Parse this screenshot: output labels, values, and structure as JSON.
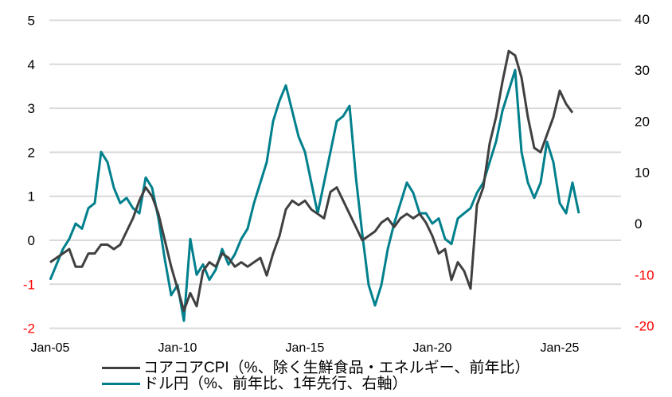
{
  "chart_data": {
    "type": "line",
    "title": "",
    "x_tick_labels": [
      "Jan-05",
      "Jan-10",
      "Jan-15",
      "Jan-20",
      "Jan-25"
    ],
    "left_axis": {
      "ticks": [
        5,
        4,
        3,
        2,
        1,
        0,
        -1,
        -2
      ],
      "ylim": [
        -2,
        5
      ],
      "label": ""
    },
    "right_axis": {
      "ticks": [
        40,
        30,
        20,
        10,
        0,
        -10,
        -20
      ],
      "ylim": [
        -20,
        40
      ],
      "label": ""
    },
    "grid": true,
    "legend_position": "bottom",
    "series": [
      {
        "name": "コアコアCPI（%、除く生鮮食品・エネルギー、前年比）",
        "axis": "left",
        "color": "#404040",
        "x": [
          2005.0,
          2005.25,
          2005.5,
          2005.75,
          2006.0,
          2006.25,
          2006.5,
          2006.75,
          2007.0,
          2007.25,
          2007.5,
          2007.75,
          2008.0,
          2008.25,
          2008.5,
          2008.75,
          2009.0,
          2009.25,
          2009.5,
          2009.75,
          2010.0,
          2010.25,
          2010.5,
          2010.75,
          2011.0,
          2011.25,
          2011.5,
          2011.75,
          2012.0,
          2012.25,
          2012.5,
          2012.75,
          2013.0,
          2013.25,
          2013.5,
          2013.75,
          2014.0,
          2014.25,
          2014.5,
          2014.75,
          2015.0,
          2015.25,
          2015.5,
          2015.75,
          2016.0,
          2016.25,
          2016.5,
          2016.75,
          2017.0,
          2017.25,
          2017.5,
          2017.75,
          2018.0,
          2018.25,
          2018.5,
          2018.75,
          2019.0,
          2019.25,
          2019.5,
          2019.75,
          2020.0,
          2020.25,
          2020.5,
          2020.75,
          2021.0,
          2021.25,
          2021.5,
          2021.75,
          2022.0,
          2022.25,
          2022.5,
          2022.75,
          2023.0,
          2023.25,
          2023.5,
          2023.75,
          2024.0,
          2024.25,
          2024.5,
          2024.75,
          2025.0,
          2025.25,
          2025.5
        ],
        "values": [
          -0.5,
          -0.4,
          -0.3,
          -0.2,
          -0.6,
          -0.6,
          -0.3,
          -0.3,
          -0.1,
          -0.1,
          -0.2,
          -0.1,
          0.2,
          0.5,
          0.9,
          1.2,
          1.0,
          0.6,
          0.0,
          -0.6,
          -1.1,
          -1.6,
          -1.2,
          -1.5,
          -0.7,
          -0.5,
          -0.6,
          -0.3,
          -0.4,
          -0.6,
          -0.5,
          -0.6,
          -0.5,
          -0.4,
          -0.8,
          -0.3,
          0.1,
          0.7,
          0.9,
          0.8,
          0.9,
          0.7,
          0.6,
          0.5,
          1.1,
          1.2,
          0.9,
          0.6,
          0.3,
          0.0,
          0.1,
          0.2,
          0.4,
          0.5,
          0.3,
          0.5,
          0.6,
          0.5,
          0.6,
          0.4,
          0.1,
          -0.3,
          -0.2,
          -0.9,
          -0.5,
          -0.7,
          -1.1,
          0.8,
          1.2,
          2.2,
          2.8,
          3.6,
          4.3,
          4.2,
          3.7,
          2.8,
          2.1,
          2.0,
          2.4,
          2.8,
          3.4,
          3.1,
          2.9
        ]
      },
      {
        "name": "ドル円（%、前年比、1年先行、右軸）",
        "axis": "right",
        "color": "#00808C",
        "x": [
          2005.0,
          2005.25,
          2005.5,
          2005.75,
          2006.0,
          2006.25,
          2006.5,
          2006.75,
          2007.0,
          2007.25,
          2007.5,
          2007.75,
          2008.0,
          2008.25,
          2008.5,
          2008.75,
          2009.0,
          2009.25,
          2009.5,
          2009.75,
          2010.0,
          2010.25,
          2010.5,
          2010.75,
          2011.0,
          2011.25,
          2011.5,
          2011.75,
          2012.0,
          2012.25,
          2012.5,
          2012.75,
          2013.0,
          2013.25,
          2013.5,
          2013.75,
          2014.0,
          2014.25,
          2014.5,
          2014.75,
          2015.0,
          2015.25,
          2015.5,
          2015.75,
          2016.0,
          2016.25,
          2016.5,
          2016.75,
          2017.0,
          2017.25,
          2017.5,
          2017.75,
          2018.0,
          2018.25,
          2018.5,
          2018.75,
          2019.0,
          2019.25,
          2019.5,
          2019.75,
          2020.0,
          2020.25,
          2020.5,
          2020.75,
          2021.0,
          2021.25,
          2021.5,
          2021.75,
          2022.0,
          2022.25,
          2022.5,
          2022.75,
          2023.0,
          2023.25,
          2023.5,
          2023.75,
          2024.0,
          2024.25,
          2024.5,
          2024.75,
          2025.0,
          2025.25,
          2025.5,
          2025.75
        ],
        "values": [
          -11,
          -8,
          -5,
          -3,
          0,
          -1,
          3,
          4,
          14,
          12,
          7,
          4,
          5,
          3,
          2,
          9,
          7,
          1,
          -7,
          -14,
          -12,
          -19,
          -3,
          -10,
          -8,
          -11,
          -9,
          -5,
          -8,
          -6,
          -3,
          -1,
          4,
          8,
          12,
          20,
          24,
          27,
          22,
          17,
          14,
          8,
          2,
          8,
          14,
          20,
          21,
          23,
          9,
          -2,
          -12,
          -16,
          -12,
          -5,
          0,
          4,
          8,
          6,
          2,
          2,
          0,
          1,
          -3,
          -4,
          1,
          2,
          3,
          6,
          8,
          12,
          16,
          22,
          26,
          30,
          14,
          8,
          5,
          8,
          16,
          12,
          4,
          2,
          8,
          2
        ]
      }
    ]
  },
  "legend": {
    "items": [
      {
        "label": "コアコアCPI（%、除く生鮮食品・エネルギー、前年比）",
        "color": "#404040"
      },
      {
        "label": "ドル円（%、前年比、1年先行、右軸）",
        "color": "#00808C"
      }
    ]
  }
}
